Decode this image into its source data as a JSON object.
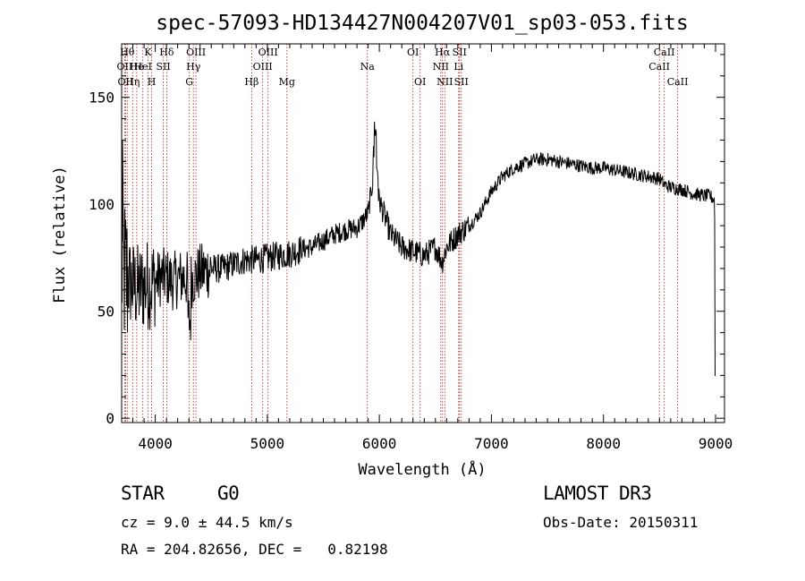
{
  "chart_data": {
    "type": "line",
    "title": "spec-57093-HD134427N004207V01_sp03-053.fits",
    "xlabel": "Wavelength (Å)",
    "ylabel": "Flux (relative)",
    "xlim": [
      3700,
      9080
    ],
    "ylim": [
      -2,
      175
    ],
    "xticks": [
      4000,
      5000,
      6000,
      7000,
      8000,
      9000
    ],
    "yticks": [
      0,
      50,
      100,
      150
    ],
    "grid": false,
    "line_color": "#000000",
    "marker_color": "#b22222",
    "spectrum_anchors": {
      "x": [
        3700,
        3750,
        3800,
        3850,
        3900,
        3950,
        4000,
        4050,
        4100,
        4150,
        4200,
        4250,
        4300,
        4400,
        4500,
        4600,
        4700,
        4800,
        4900,
        5000,
        5100,
        5200,
        5300,
        5400,
        5500,
        5600,
        5700,
        5800,
        5850,
        5900,
        5950,
        6000,
        6050,
        6100,
        6200,
        6300,
        6400,
        6500,
        6560,
        6600,
        6700,
        6800,
        6900,
        7000,
        7100,
        7200,
        7300,
        7400,
        7500,
        7600,
        7700,
        7800,
        7900,
        8000,
        8100,
        8200,
        8300,
        8400,
        8500,
        8550,
        8600,
        8700,
        8800,
        8900,
        8950,
        8990,
        9000
      ],
      "y": [
        70,
        65,
        62,
        60,
        62,
        63,
        64,
        66,
        66,
        64,
        65,
        66,
        64,
        68,
        70,
        70,
        72,
        74,
        74,
        75,
        76,
        77,
        79,
        80,
        83,
        86,
        88,
        89,
        92,
        96,
        114,
        102,
        94,
        86,
        80,
        78,
        76,
        80,
        73,
        80,
        86,
        90,
        96,
        106,
        113,
        117,
        119,
        121,
        121,
        120,
        119,
        118,
        117,
        117,
        116,
        115,
        114,
        113,
        112,
        109,
        108,
        107,
        105,
        104,
        104,
        102,
        70
      ]
    },
    "lines": [
      {
        "wl": 3727,
        "label": "OII",
        "row": 2
      },
      {
        "wl": 3735,
        "label": "OII",
        "row": 3
      },
      {
        "wl": 3750,
        "label": "Hθ",
        "row": 1
      },
      {
        "wl": 3798,
        "label": "Hη",
        "row": 3
      },
      {
        "wl": 3835,
        "label": "He",
        "row": 2
      },
      {
        "wl": 3889,
        "label": "HeI",
        "row": 2
      },
      {
        "wl": 3934,
        "label": "K",
        "row": 1
      },
      {
        "wl": 3968,
        "label": "H",
        "row": 3
      },
      {
        "wl": 4072,
        "label": "SII",
        "row": 2
      },
      {
        "wl": 4102,
        "label": "Hδ",
        "row": 1
      },
      {
        "wl": 4304,
        "label": "G",
        "row": 3
      },
      {
        "wl": 4340,
        "label": "Hγ",
        "row": 2
      },
      {
        "wl": 4363,
        "label": "OIII",
        "row": 1
      },
      {
        "wl": 4861,
        "label": "Hβ",
        "row": 3
      },
      {
        "wl": 4959,
        "label": "OIII",
        "row": 2
      },
      {
        "wl": 5007,
        "label": "OIII",
        "row": 1
      },
      {
        "wl": 5175,
        "label": "Mg",
        "row": 3
      },
      {
        "wl": 5893,
        "label": "Na",
        "row": 2
      },
      {
        "wl": 6300,
        "label": "OI",
        "row": 1
      },
      {
        "wl": 6364,
        "label": "OI",
        "row": 3
      },
      {
        "wl": 6548,
        "label": "NII",
        "row": 2
      },
      {
        "wl": 6563,
        "label": "Hα",
        "row": 1
      },
      {
        "wl": 6584,
        "label": "NII",
        "row": 3
      },
      {
        "wl": 6708,
        "label": "Li",
        "row": 2
      },
      {
        "wl": 6716,
        "label": "SII",
        "row": 1
      },
      {
        "wl": 6731,
        "label": "SII",
        "row": 3
      },
      {
        "wl": 8498,
        "label": "CaII",
        "row": 2
      },
      {
        "wl": 8542,
        "label": "CaII",
        "row": 1
      },
      {
        "wl": 8662,
        "label": "CaII",
        "row": 3
      }
    ]
  },
  "info": {
    "class_label": "STAR",
    "subclass": "G0",
    "survey": "LAMOST DR3",
    "redshift": "cz = 9.0 ± 44.5 km/s",
    "obs_date": "Obs-Date: 20150311",
    "coords": "RA = 204.82656, DEC =   0.82198"
  }
}
